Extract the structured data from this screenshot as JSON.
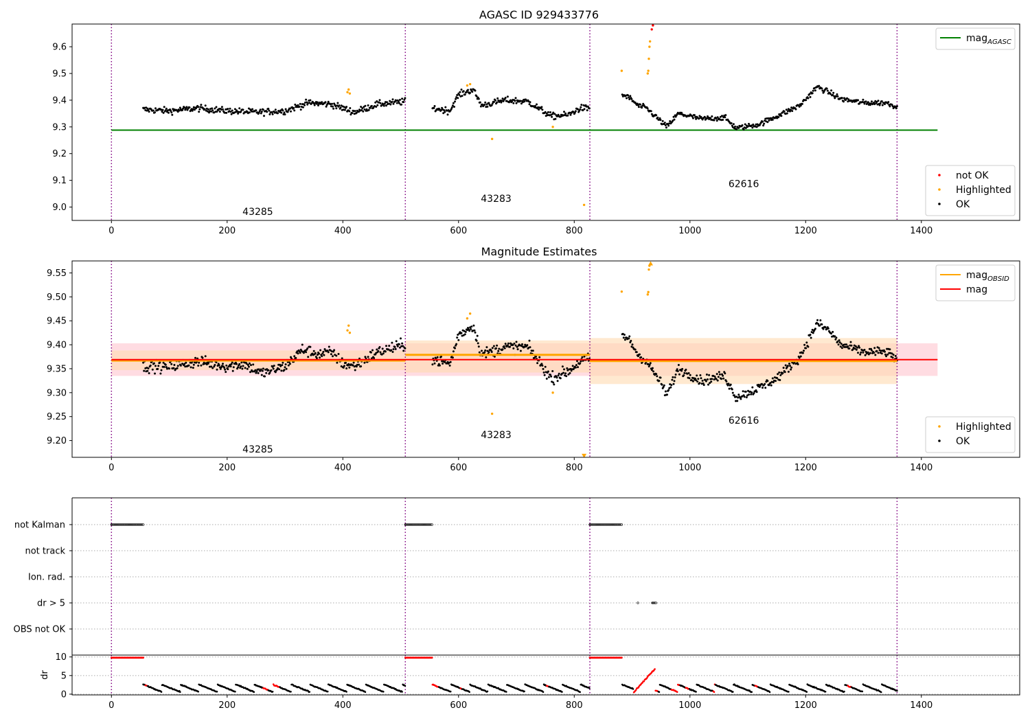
{
  "figure": {
    "background": "#ffffff",
    "colors": {
      "ok": "#000000",
      "highlighted": "#ffa500",
      "not_ok": "#ff0000",
      "agasc_line": "#008000",
      "obs_line": "#ffa500",
      "mag_line": "#ff0000",
      "boundary": "#800080",
      "mag_band": "#ffc0cb",
      "obs_band": "#ffdab0"
    }
  },
  "chart_data": [
    {
      "id": "agasc",
      "type": "scatter",
      "title": "AGASC ID 929433776",
      "xlim": [
        -68,
        1570
      ],
      "ylim": [
        8.95,
        9.685
      ],
      "xticks": [
        0,
        200,
        400,
        600,
        800,
        1000,
        1200,
        1400
      ],
      "xtick_labels": [
        "0",
        "200",
        "400",
        "600",
        "800",
        "1000",
        "1200",
        "1400"
      ],
      "yticks": [
        9.0,
        9.1,
        9.2,
        9.3,
        9.4,
        9.5,
        9.6
      ],
      "ytick_labels": [
        "9.0",
        "9.1",
        "9.2",
        "9.3",
        "9.4",
        "9.5",
        "9.6"
      ],
      "grid": false,
      "obs_boundaries": [
        0,
        508,
        827,
        1358
      ],
      "obs_labels": [
        {
          "text": "43285",
          "x": 253,
          "y": 8.97
        },
        {
          "text": "43283",
          "x": 665,
          "y": 9.02
        },
        {
          "text": "62616",
          "x": 1093,
          "y": 9.075
        }
      ],
      "hlines": [
        {
          "name": "mag_AGASC",
          "value": 9.288,
          "x": [
            0,
            1428
          ],
          "color": "#008000"
        }
      ],
      "series": [
        {
          "name": "OK",
          "color": "#000000"
        },
        {
          "name": "Highlighted",
          "color": "#ffa500"
        },
        {
          "name": "not OK",
          "color": "#ff0000"
        }
      ],
      "observations": [
        {
          "x": [
            55,
            508
          ],
          "knots": [
            [
              55,
              9.365
            ],
            [
              100,
              9.36
            ],
            [
              150,
              9.37
            ],
            [
              200,
              9.36
            ],
            [
              250,
              9.355
            ],
            [
              300,
              9.36
            ],
            [
              340,
              9.39
            ],
            [
              380,
              9.385
            ],
            [
              400,
              9.37
            ],
            [
              420,
              9.355
            ],
            [
              460,
              9.385
            ],
            [
              508,
              9.395
            ]
          ],
          "noise": 0.012
        },
        {
          "x": [
            555,
            827
          ],
          "knots": [
            [
              555,
              9.37
            ],
            [
              585,
              9.36
            ],
            [
              600,
              9.42
            ],
            [
              625,
              9.44
            ],
            [
              640,
              9.38
            ],
            [
              680,
              9.4
            ],
            [
              720,
              9.395
            ],
            [
              760,
              9.34
            ],
            [
              790,
              9.345
            ],
            [
              810,
              9.37
            ],
            [
              827,
              9.37
            ]
          ],
          "noise": 0.012
        },
        {
          "x": [
            883,
            1358
          ],
          "knots": [
            [
              883,
              9.42
            ],
            [
              895,
              9.41
            ],
            [
              910,
              9.38
            ],
            [
              925,
              9.37
            ],
            [
              950,
              9.32
            ],
            [
              960,
              9.3
            ],
            [
              980,
              9.35
            ],
            [
              1020,
              9.33
            ],
            [
              1060,
              9.335
            ],
            [
              1080,
              9.295
            ],
            [
              1120,
              9.31
            ],
            [
              1150,
              9.34
            ],
            [
              1190,
              9.38
            ],
            [
              1220,
              9.45
            ],
            [
              1240,
              9.43
            ],
            [
              1260,
              9.405
            ],
            [
              1300,
              9.39
            ],
            [
              1340,
              9.39
            ],
            [
              1358,
              9.375
            ]
          ],
          "noise": 0.01
        }
      ],
      "highlighted_points": [
        [
          408,
          9.43
        ],
        [
          410,
          9.44
        ],
        [
          412,
          9.425
        ],
        [
          615,
          9.455
        ],
        [
          620,
          9.46
        ],
        [
          658,
          9.255
        ],
        [
          763,
          9.3
        ],
        [
          817,
          9.008
        ],
        [
          882,
          9.51
        ],
        [
          928,
          9.51
        ],
        [
          929,
          9.555
        ],
        [
          930,
          9.6
        ],
        [
          931,
          9.62
        ],
        [
          927,
          9.5
        ]
      ],
      "not_ok_points": [
        [
          934,
          9.665
        ],
        [
          936,
          9.68
        ]
      ],
      "legends": [
        {
          "position": "upper right",
          "entries": [
            {
              "kind": "line",
              "color": "#008000",
              "text": "mag",
              "sub": "AGASC"
            }
          ]
        },
        {
          "position": "lower right",
          "entries": [
            {
              "kind": "dot",
              "color": "#ff0000",
              "text": "not OK"
            },
            {
              "kind": "dot",
              "color": "#ffa500",
              "text": "Highlighted"
            },
            {
              "kind": "dot",
              "color": "#000000",
              "text": "OK"
            }
          ]
        }
      ]
    },
    {
      "id": "estimates",
      "type": "scatter",
      "title": "Magnitude Estimates",
      "xlim": [
        -68,
        1570
      ],
      "ylim": [
        9.165,
        9.575
      ],
      "xticks": [
        0,
        200,
        400,
        600,
        800,
        1000,
        1200,
        1400
      ],
      "xtick_labels": [
        "0",
        "200",
        "400",
        "600",
        "800",
        "1000",
        "1200",
        "1400"
      ],
      "yticks": [
        9.2,
        9.25,
        9.3,
        9.35,
        9.4,
        9.45,
        9.5,
        9.55
      ],
      "ytick_labels": [
        "9.20",
        "9.25",
        "9.30",
        "9.35",
        "9.40",
        "9.45",
        "9.50",
        "9.55"
      ],
      "grid": false,
      "obs_boundaries": [
        0,
        508,
        827,
        1358
      ],
      "obs_labels": [
        {
          "text": "43285",
          "x": 253,
          "y": 9.175
        },
        {
          "text": "43283",
          "x": 665,
          "y": 9.205
        },
        {
          "text": "62616",
          "x": 1093,
          "y": 9.235
        }
      ],
      "mag": {
        "value": 9.369,
        "x": [
          0,
          1428
        ],
        "band": [
          9.335,
          9.403
        ],
        "color": "#ff0000"
      },
      "mag_obsid": [
        {
          "x": [
            0,
            508
          ],
          "value": 9.367,
          "band": [
            9.347,
            9.388
          ]
        },
        {
          "x": [
            508,
            827
          ],
          "value": 9.379,
          "band": [
            9.342,
            9.409
          ]
        },
        {
          "x": [
            827,
            1358
          ],
          "value": 9.366,
          "band": [
            9.318,
            9.414
          ]
        }
      ],
      "series": [
        {
          "name": "OK",
          "color": "#000000"
        },
        {
          "name": "Highlighted",
          "color": "#ffa500"
        }
      ],
      "observations": [
        {
          "x": [
            55,
            508
          ],
          "knots": [
            [
              55,
              9.355
            ],
            [
              100,
              9.355
            ],
            [
              150,
              9.365
            ],
            [
              200,
              9.355
            ],
            [
              230,
              9.36
            ],
            [
              260,
              9.34
            ],
            [
              300,
              9.355
            ],
            [
              330,
              9.39
            ],
            [
              360,
              9.38
            ],
            [
              380,
              9.385
            ],
            [
              400,
              9.36
            ],
            [
              420,
              9.355
            ],
            [
              460,
              9.385
            ],
            [
              508,
              9.4
            ]
          ],
          "noise": 0.012
        },
        {
          "x": [
            555,
            827
          ],
          "knots": [
            [
              555,
              9.37
            ],
            [
              585,
              9.36
            ],
            [
              600,
              9.42
            ],
            [
              625,
              9.44
            ],
            [
              640,
              9.38
            ],
            [
              680,
              9.395
            ],
            [
              720,
              9.395
            ],
            [
              760,
              9.33
            ],
            [
              790,
              9.345
            ],
            [
              810,
              9.365
            ],
            [
              827,
              9.37
            ]
          ],
          "noise": 0.012
        },
        {
          "x": [
            883,
            1358
          ],
          "knots": [
            [
              883,
              9.42
            ],
            [
              895,
              9.41
            ],
            [
              910,
              9.38
            ],
            [
              925,
              9.365
            ],
            [
              950,
              9.32
            ],
            [
              960,
              9.295
            ],
            [
              980,
              9.35
            ],
            [
              1020,
              9.325
            ],
            [
              1060,
              9.335
            ],
            [
              1080,
              9.29
            ],
            [
              1120,
              9.31
            ],
            [
              1150,
              9.33
            ],
            [
              1190,
              9.375
            ],
            [
              1220,
              9.445
            ],
            [
              1240,
              9.43
            ],
            [
              1260,
              9.4
            ],
            [
              1300,
              9.385
            ],
            [
              1340,
              9.385
            ],
            [
              1358,
              9.37
            ]
          ],
          "noise": 0.01
        }
      ],
      "highlighted_points": [
        [
          408,
          9.43
        ],
        [
          410,
          9.44
        ],
        [
          412,
          9.425
        ],
        [
          615,
          9.455
        ],
        [
          620,
          9.465
        ],
        [
          658,
          9.256
        ],
        [
          763,
          9.3
        ],
        [
          882,
          9.511
        ],
        [
          927,
          9.505
        ],
        [
          928,
          9.51
        ],
        [
          929,
          9.557
        ],
        [
          930,
          9.565
        ]
      ],
      "offscale_markers": [
        [
          817,
          9.168
        ],
        [
          932,
          9.57
        ]
      ],
      "legends": [
        {
          "position": "upper right",
          "entries": [
            {
              "kind": "line",
              "color": "#ffa500",
              "text": "mag",
              "sub": "OBSID"
            },
            {
              "kind": "line",
              "color": "#ff0000",
              "text": "mag",
              "sub": ""
            }
          ]
        },
        {
          "position": "lower right",
          "entries": [
            {
              "kind": "dot",
              "color": "#ffa500",
              "text": "Highlighted"
            },
            {
              "kind": "dot",
              "color": "#000000",
              "text": "OK"
            }
          ]
        }
      ]
    },
    {
      "id": "flags",
      "type": "scatter",
      "title": "",
      "xlim": [
        -68,
        1570
      ],
      "categories": [
        "not Kalman",
        "not track",
        "Ion. rad.",
        "dr > 5",
        "OBS not OK"
      ],
      "grid": "horizontal dotted",
      "obs_boundaries": [
        0,
        508,
        827,
        1358
      ],
      "flag_segments": [
        {
          "category": "not Kalman",
          "x": [
            [
              0,
              55
            ],
            [
              508,
              555
            ],
            [
              827,
              883
            ]
          ]
        },
        {
          "category": "dr > 5",
          "x": [
            [
              910,
              910
            ],
            [
              935,
              942
            ]
          ]
        }
      ]
    },
    {
      "id": "dr",
      "type": "scatter",
      "title": "",
      "ylabel": "dr",
      "xlim": [
        -68,
        1570
      ],
      "ylim": [
        -0.2,
        10.5
      ],
      "xticks": [
        0,
        200,
        400,
        600,
        800,
        1000,
        1200,
        1400
      ],
      "xtick_labels": [
        "0",
        "200",
        "400",
        "600",
        "800",
        "1000",
        "1200",
        "1400"
      ],
      "yticks": [
        0,
        5,
        10
      ],
      "ytick_labels": [
        "0",
        "5",
        "10"
      ],
      "grid": "horizontal dotted",
      "obs_boundaries": [
        0,
        508,
        827,
        1358
      ],
      "capped_segments": [
        [
          0,
          55
        ],
        [
          508,
          555
        ],
        [
          827,
          883
        ]
      ],
      "cap_value": 9.8,
      "trend_segments": [
        [
          55,
          508
        ],
        [
          555,
          827
        ],
        [
          883,
          1358
        ]
      ],
      "red_segments": [
        [
          58,
          62
        ],
        [
          262,
          270
        ],
        [
          280,
          290
        ],
        [
          555,
          565
        ],
        [
          603,
          606
        ],
        [
          752,
          756
        ],
        [
          903,
          925
        ],
        [
          925,
          945
        ],
        [
          968,
          982
        ],
        [
          993,
          999
        ],
        [
          1040,
          1044
        ],
        [
          1113,
          1117
        ],
        [
          1272,
          1278
        ]
      ],
      "ramp": [
        [
          903,
          0.5
        ],
        [
          920,
          3.5
        ],
        [
          940,
          6.8
        ]
      ]
    }
  ]
}
